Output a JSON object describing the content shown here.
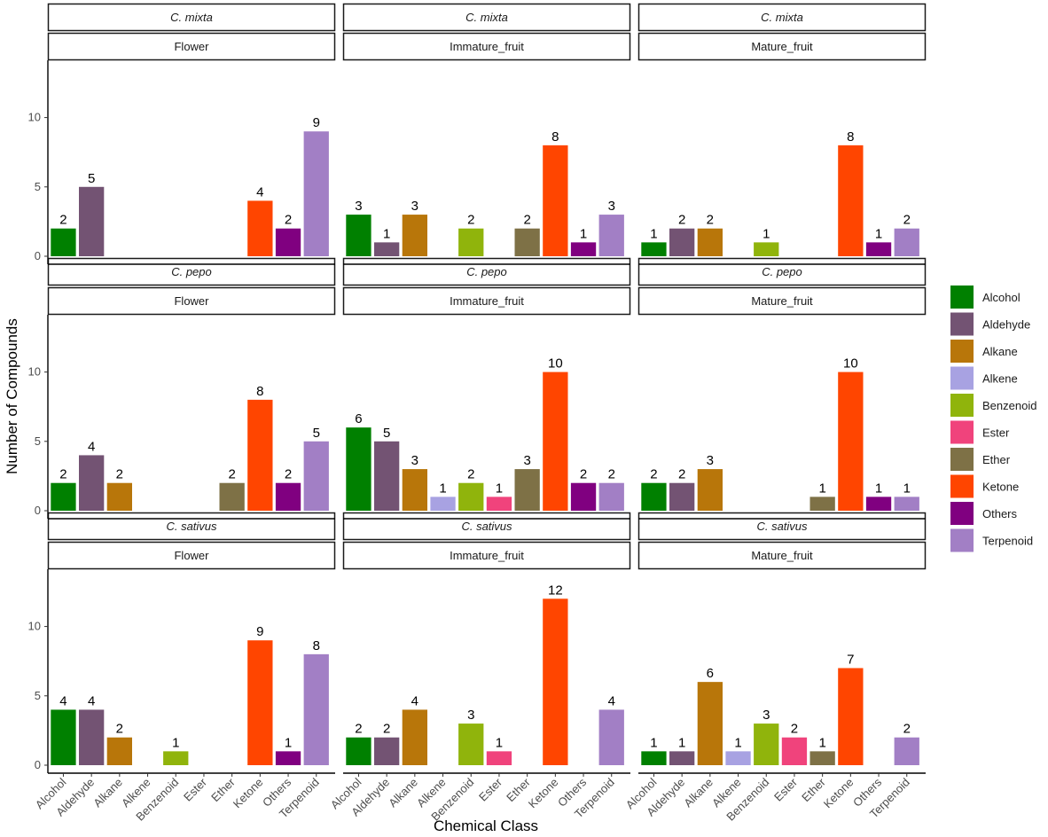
{
  "chart_data": {
    "type": "bar",
    "xlabel": "Chemical Class",
    "ylabel": "Number of Compounds",
    "ylim": [
      0,
      14
    ],
    "y_ticks": [
      0,
      5,
      10
    ],
    "categories": [
      "Alcohol",
      "Aldehyde",
      "Alkane",
      "Alkene",
      "Benzenoid",
      "Ester",
      "Ether",
      "Ketone",
      "Others",
      "Terpenoid"
    ],
    "legend": {
      "entries": [
        "Alcohol",
        "Aldehyde",
        "Alkane",
        "Alkene",
        "Benzenoid",
        "Ester",
        "Ether",
        "Ketone",
        "Others",
        "Terpenoid"
      ],
      "colors": [
        "#008000",
        "#735373",
        "#B8760A",
        "#A8A2E2",
        "#90B40C",
        "#F0437C",
        "#7E7146",
        "#FF4500",
        "#800080",
        "#A27FC5"
      ],
      "position": "right"
    },
    "panels": [
      {
        "species": "C. mixta",
        "tissue": "Flower",
        "values": [
          2,
          5,
          0,
          0,
          0,
          0,
          0,
          4,
          2,
          9
        ]
      },
      {
        "species": "C. mixta",
        "tissue": "Immature_fruit",
        "values": [
          3,
          1,
          3,
          0,
          2,
          0,
          2,
          8,
          1,
          3
        ]
      },
      {
        "species": "C. mixta",
        "tissue": "Mature_fruit",
        "values": [
          1,
          2,
          2,
          0,
          1,
          0,
          0,
          8,
          1,
          2
        ]
      },
      {
        "species": "C. pepo",
        "tissue": "Flower",
        "values": [
          2,
          4,
          2,
          0,
          0,
          0,
          2,
          8,
          2,
          5
        ]
      },
      {
        "species": "C. pepo",
        "tissue": "Immature_fruit",
        "values": [
          6,
          5,
          3,
          1,
          2,
          1,
          3,
          10,
          2,
          2
        ]
      },
      {
        "species": "C. pepo",
        "tissue": "Mature_fruit",
        "values": [
          2,
          2,
          3,
          0,
          0,
          0,
          1,
          10,
          1,
          1
        ]
      },
      {
        "species": "C. sativus",
        "tissue": "Flower",
        "values": [
          4,
          4,
          2,
          0,
          1,
          0,
          0,
          9,
          1,
          8
        ]
      },
      {
        "species": "C. sativus",
        "tissue": "Immature_fruit",
        "values": [
          2,
          2,
          4,
          0,
          3,
          1,
          0,
          12,
          0,
          4
        ]
      },
      {
        "species": "C. sativus",
        "tissue": "Mature_fruit",
        "values": [
          1,
          1,
          6,
          1,
          3,
          2,
          1,
          7,
          0,
          2
        ]
      }
    ]
  }
}
